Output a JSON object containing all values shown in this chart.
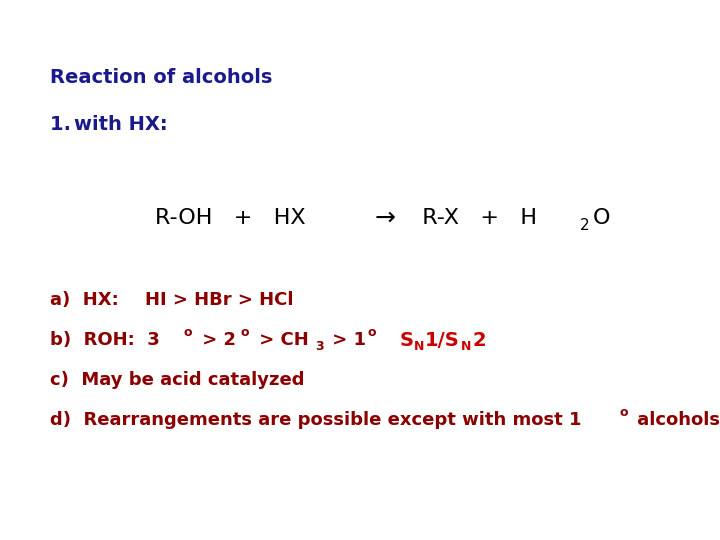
{
  "background_color": "#ffffff",
  "dark_blue": "#1a1a8c",
  "dark_red": "#8B0000",
  "bright_red": "#CC0000",
  "black": "#000000",
  "fig_w": 7.2,
  "fig_h": 5.4,
  "dpi": 100
}
